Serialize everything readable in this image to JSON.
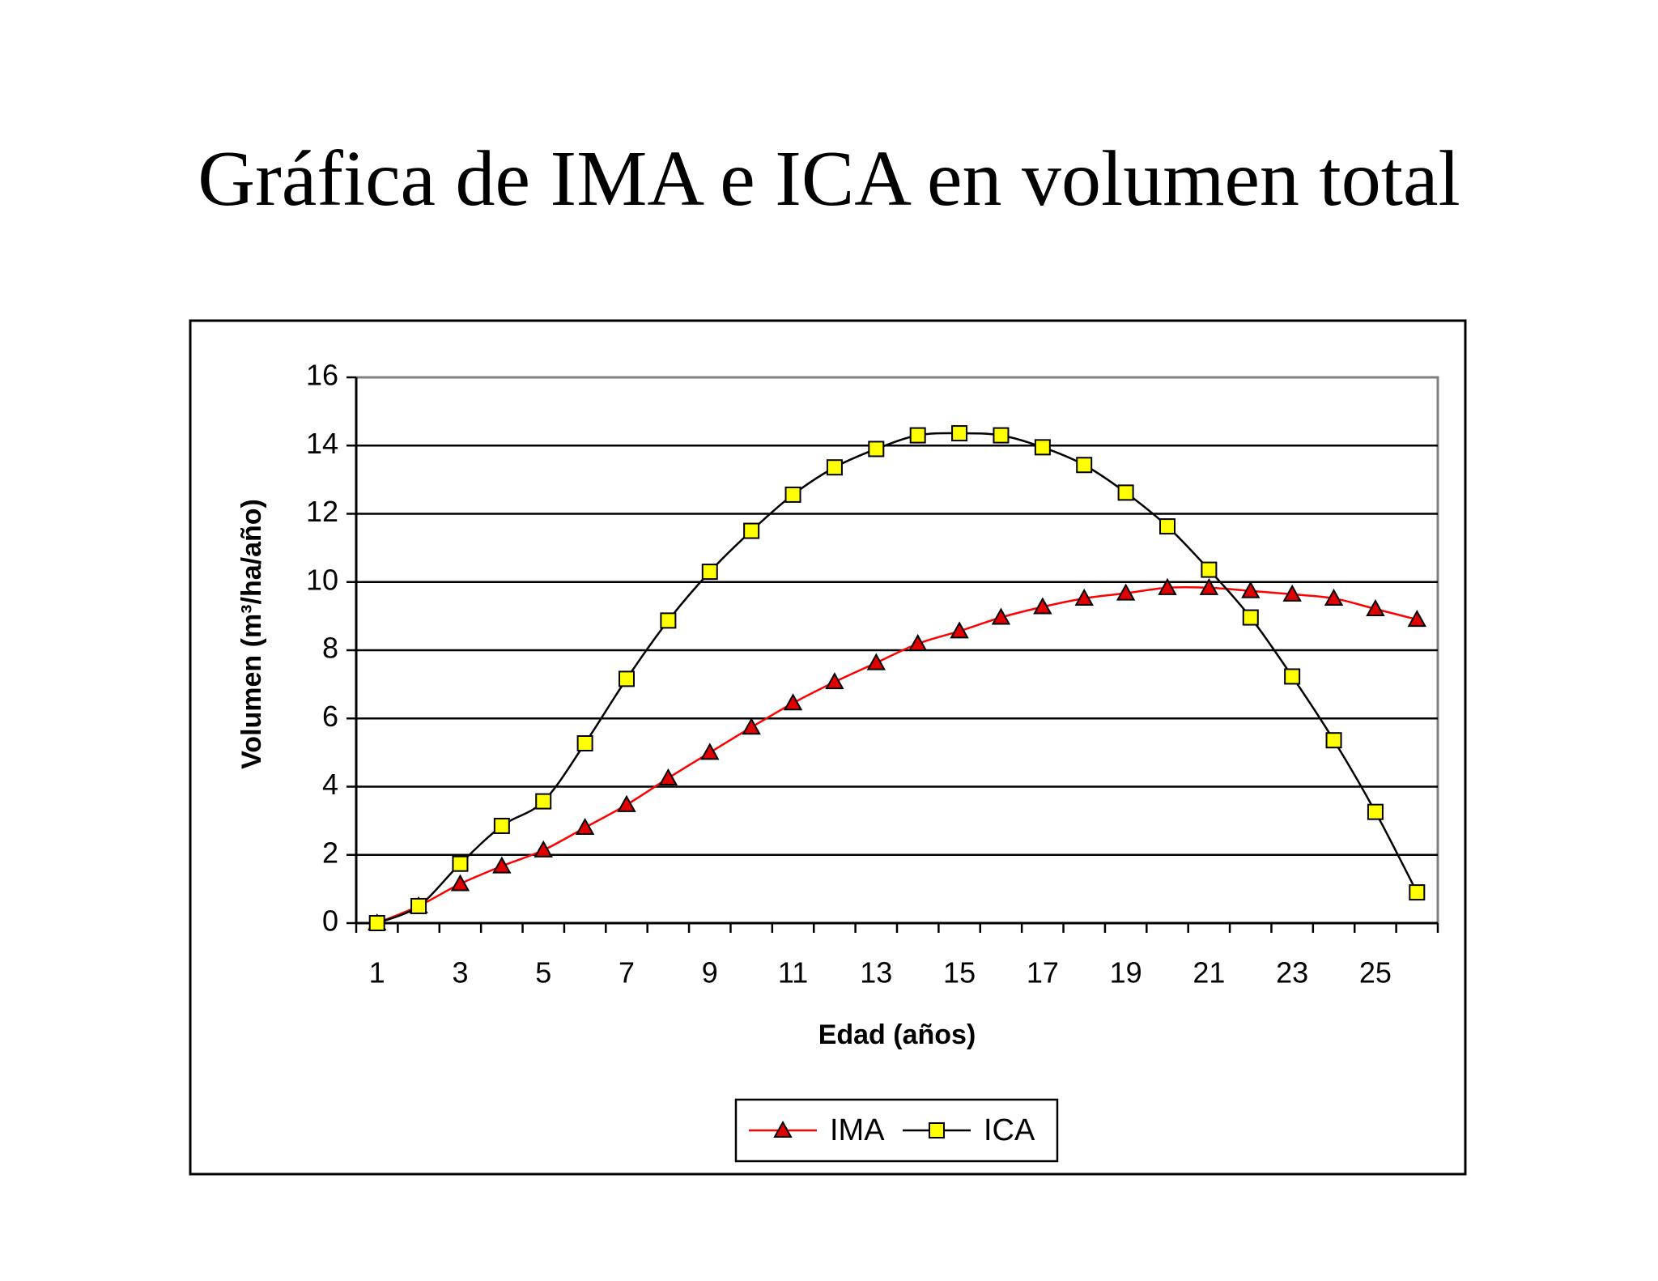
{
  "chart_data": {
    "type": "line",
    "title": "Gráfica de IMA e ICA en volumen total",
    "x_label": "Edad (años)",
    "y_label": "Volumen (m³/ha/año)",
    "categories": [
      1,
      null,
      3,
      null,
      5,
      null,
      7,
      null,
      9,
      null,
      11,
      null,
      13,
      null,
      15,
      null,
      17,
      null,
      19,
      null,
      21,
      null,
      23,
      null,
      25,
      null
    ],
    "series": [
      {
        "name": "IMA",
        "color": "#ff0000",
        "marker": "triangle",
        "marker_fill": "#e00000",
        "values": [
          0,
          0.5,
          1.15,
          1.67,
          2.14,
          2.8,
          3.47,
          4.25,
          5.0,
          5.74,
          6.45,
          7.07,
          7.63,
          8.19,
          8.56,
          8.96,
          9.27,
          9.52,
          9.67,
          9.83,
          9.83,
          9.74,
          9.64,
          9.52,
          9.21,
          8.9
        ]
      },
      {
        "name": "ICA",
        "color": "#000000",
        "marker": "square",
        "marker_fill": "#ffff00",
        "values": [
          0,
          0.5,
          1.74,
          2.85,
          3.57,
          5.27,
          7.16,
          8.87,
          10.3,
          11.5,
          12.56,
          13.36,
          13.9,
          14.3,
          14.36,
          14.3,
          13.95,
          13.43,
          12.62,
          11.63,
          10.36,
          8.96,
          7.23,
          5.36,
          3.26,
          0.9
        ]
      }
    ],
    "ylim": [
      0,
      16
    ],
    "yticks": [
      0,
      2,
      4,
      6,
      8,
      10,
      12,
      14,
      16
    ],
    "grid": true,
    "smooth": true,
    "legend": "bottom"
  }
}
